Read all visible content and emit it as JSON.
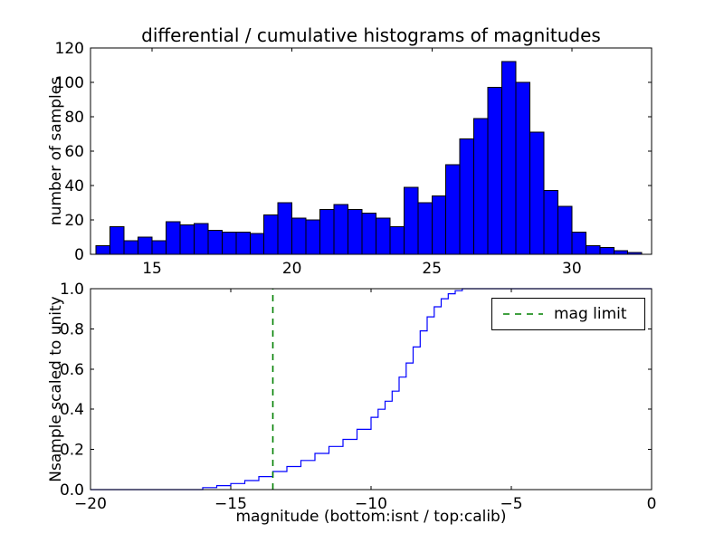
{
  "figure": {
    "background": "#ffffff"
  },
  "chart_data": [
    {
      "type": "bar",
      "subtype": "histogram",
      "title": "differential / cumulative histograms of magnitudes",
      "ylabel": "number of samples",
      "bin_start": 13.0,
      "bin_width": 0.5,
      "values": [
        5,
        16,
        8,
        10,
        8,
        19,
        17,
        18,
        14,
        13,
        13,
        12,
        23,
        30,
        21,
        20,
        26,
        29,
        26,
        24,
        21,
        16,
        39,
        30,
        34,
        52,
        67,
        79,
        97,
        112,
        100,
        71,
        37,
        28,
        13,
        5,
        4,
        2,
        1
      ],
      "xlim": [
        12.8,
        32.85
      ],
      "ylim": [
        0,
        120
      ],
      "xticks": [
        15,
        20,
        25,
        30
      ],
      "xticklabels": [
        "15",
        "20",
        "25",
        "30"
      ],
      "yticks": [
        0,
        20,
        40,
        60,
        80,
        100,
        120
      ],
      "yticklabels": [
        "0",
        "20",
        "40",
        "60",
        "80",
        "100",
        "120"
      ],
      "bar_color": "#0000ff",
      "bar_edge_color": "#000000",
      "grid": false
    },
    {
      "type": "line",
      "subtype": "cumulative-step",
      "ylabel": "Nsample scaled to unity",
      "xlabel": "magnitude (bottom:isnt / top:calib)",
      "points": [
        [
          -20,
          0
        ],
        [
          -16.5,
          0
        ],
        [
          -16,
          0.01
        ],
        [
          -15.5,
          0.02
        ],
        [
          -15,
          0.03
        ],
        [
          -14.5,
          0.045
        ],
        [
          -14,
          0.065
        ],
        [
          -13.5,
          0.09
        ],
        [
          -13,
          0.115
        ],
        [
          -12.5,
          0.145
        ],
        [
          -12,
          0.18
        ],
        [
          -11.5,
          0.215
        ],
        [
          -11,
          0.25
        ],
        [
          -10.5,
          0.3
        ],
        [
          -10,
          0.36
        ],
        [
          -9.75,
          0.4
        ],
        [
          -9.5,
          0.44
        ],
        [
          -9.25,
          0.49
        ],
        [
          -9,
          0.56
        ],
        [
          -8.75,
          0.63
        ],
        [
          -8.5,
          0.71
        ],
        [
          -8.25,
          0.79
        ],
        [
          -8,
          0.86
        ],
        [
          -7.75,
          0.91
        ],
        [
          -7.5,
          0.95
        ],
        [
          -7.25,
          0.975
        ],
        [
          -7,
          0.99
        ],
        [
          -6.75,
          1.0
        ],
        [
          0,
          1.0
        ]
      ],
      "xlim": [
        -20,
        0
      ],
      "ylim": [
        0,
        1.0
      ],
      "xticks": [
        -20,
        -15,
        -10,
        -5,
        0
      ],
      "xticklabels": [
        "−20",
        "−15",
        "−10",
        "−5",
        "0"
      ],
      "yticks": [
        0,
        0.2,
        0.4,
        0.6,
        0.8,
        1.0
      ],
      "yticklabels": [
        "0.0",
        "0.2",
        "0.4",
        "0.6",
        "0.8",
        "1.0"
      ],
      "line_color": "#0000ff",
      "mag_limit": {
        "x": -13.5,
        "color": "#008000",
        "style": "dashed",
        "label": "mag limit"
      },
      "legend": {
        "label": "mag limit",
        "position": "upper right"
      },
      "grid": false
    }
  ]
}
